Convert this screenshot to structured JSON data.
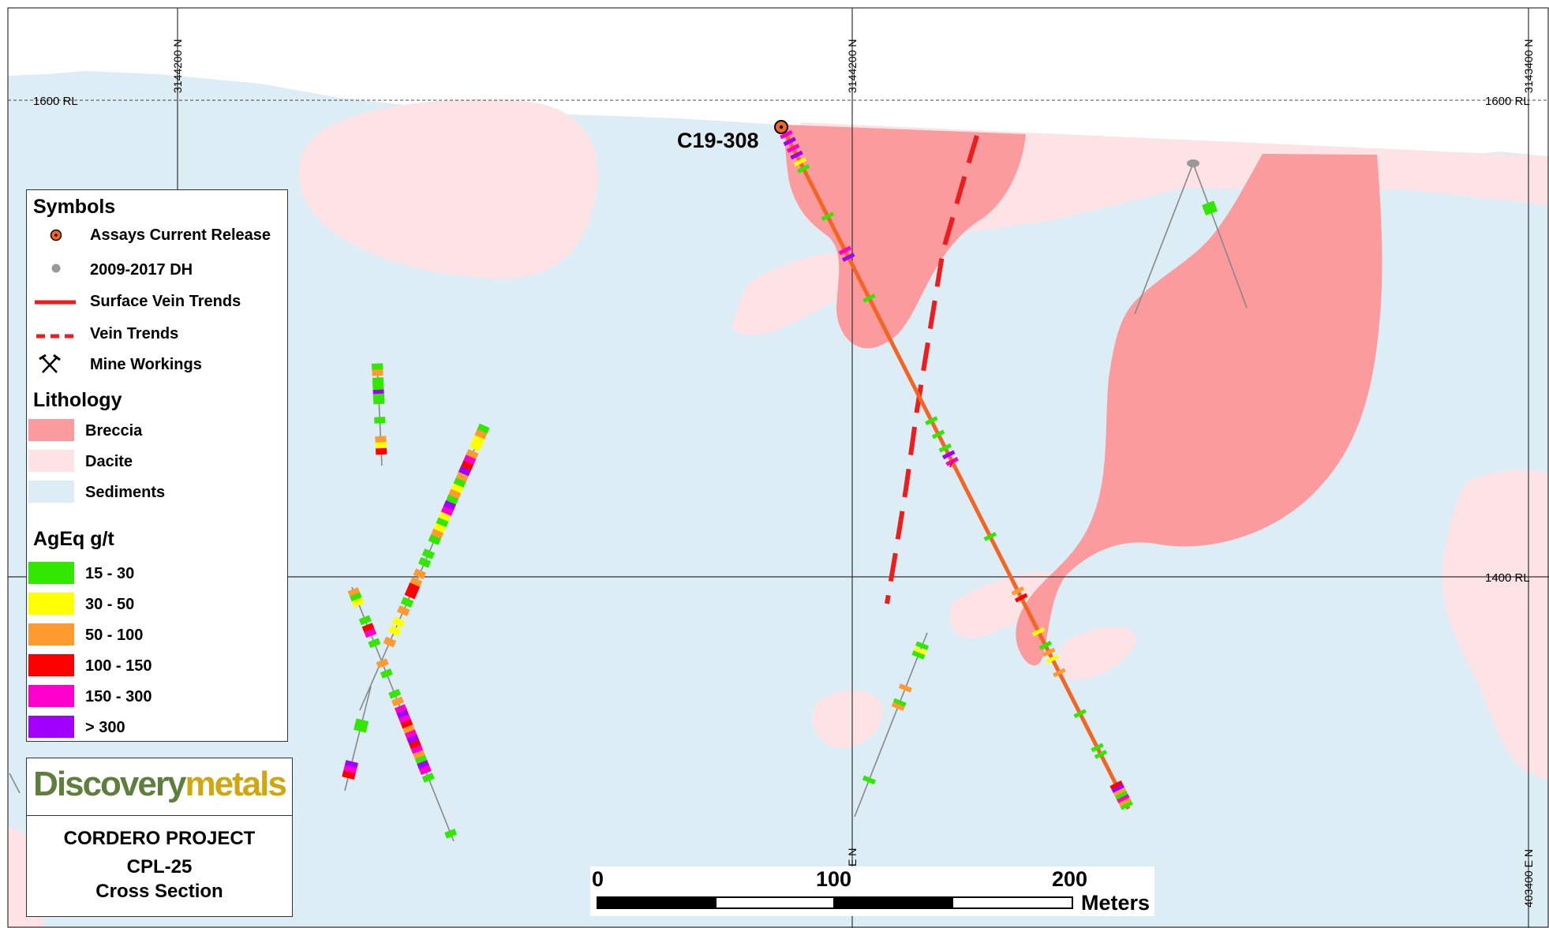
{
  "map": {
    "rl_labels": [
      "1600 RL",
      "1400 RL"
    ],
    "grid_labels": {
      "top_left": "3144200 N",
      "top_center": "3144200 N",
      "top_right": "3143400 N",
      "bottom_center": "E N",
      "bottom_right": "403400 E N"
    },
    "drill_hole_label": "C19-308",
    "colors": {
      "sediments": "#dcedf5",
      "dacite": "#fde3e5",
      "breccia": "#fc9b9e",
      "drill_trace": "#f26522",
      "vein": "#ee1c1c",
      "grade_15_30": "#33e800",
      "grade_30_50": "#ffff00",
      "grade_50_100": "#fe9a2e",
      "grade_100_150": "#ff0000",
      "grade_150_300": "#ff00cc",
      "grade_300_plus": "#a100ff"
    }
  },
  "legend": {
    "symbols_heading": "Symbols",
    "symbols": [
      {
        "label": "Assays Current Release",
        "icon": "assay-collar-icon"
      },
      {
        "label": "2009-2017 DH",
        "icon": "drill-hole-dot-icon"
      },
      {
        "label": "Surface Vein Trends",
        "icon": "solid-red-line-icon"
      },
      {
        "label": "Vein Trends",
        "icon": "dashed-red-line-icon"
      },
      {
        "label": "Mine Workings",
        "icon": "crossed-hammers-icon"
      }
    ],
    "lithology_heading": "Lithology",
    "lithology": [
      {
        "label": "Breccia",
        "color": "#fc9b9e"
      },
      {
        "label": "Dacite",
        "color": "#fde3e5"
      },
      {
        "label": "Sediments",
        "color": "#dcedf5"
      }
    ],
    "grade_heading": "AgEq g/t",
    "grades": [
      {
        "label": "15 - 30",
        "color": "#33e800"
      },
      {
        "label": "30 - 50",
        "color": "#ffff00"
      },
      {
        "label": "50 - 100",
        "color": "#fe9a2e"
      },
      {
        "label": "100 - 150",
        "color": "#ff0000"
      },
      {
        "label": "150 - 300",
        "color": "#ff00cc"
      },
      {
        "label": "> 300",
        "color": "#a100ff"
      }
    ]
  },
  "title_block": {
    "logo_part1": "Discovery",
    "logo_part2": "metals",
    "project": "CORDERO PROJECT",
    "section_line1": "CPL-25",
    "section_line2": "Cross Section"
  },
  "scale_bar": {
    "ticks": [
      "0",
      "100",
      "200"
    ],
    "units": "Meters"
  }
}
